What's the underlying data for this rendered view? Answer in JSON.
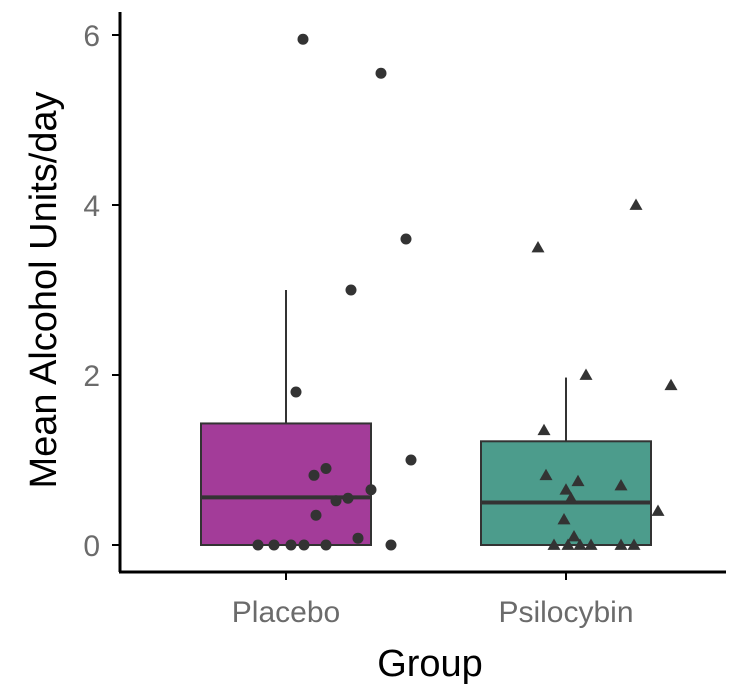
{
  "chart_data": {
    "type": "box",
    "xlabel": "Group",
    "ylabel": "Mean Alcohol Units/day",
    "ylim": [
      0,
      6
    ],
    "yticks": [
      "0",
      "2",
      "4",
      "6"
    ],
    "grid": false,
    "categories": [
      "Placebo",
      "Psilocybin"
    ],
    "groups": [
      {
        "name": "Placebo",
        "color": "#a33c99",
        "marker": "circle",
        "box": {
          "min": 0.0,
          "q1": 0.0,
          "median": 0.56,
          "q3": 1.43,
          "whisker_high": 3.0
        },
        "points": [
          {
            "x": 0.17,
            "y": 5.95
          },
          {
            "x": 0.95,
            "y": 5.55
          },
          {
            "x": 1.2,
            "y": 3.6
          },
          {
            "x": 0.65,
            "y": 3.0
          },
          {
            "x": 0.1,
            "y": 1.8
          },
          {
            "x": 1.25,
            "y": 1.0
          },
          {
            "x": 0.4,
            "y": 0.9
          },
          {
            "x": 0.28,
            "y": 0.82
          },
          {
            "x": 0.85,
            "y": 0.65
          },
          {
            "x": 0.62,
            "y": 0.55
          },
          {
            "x": 0.5,
            "y": 0.52
          },
          {
            "x": 0.3,
            "y": 0.35
          },
          {
            "x": -0.28,
            "y": 0.0
          },
          {
            "x": -0.12,
            "y": 0.0
          },
          {
            "x": 0.05,
            "y": 0.0
          },
          {
            "x": 0.18,
            "y": 0.0
          },
          {
            "x": 0.4,
            "y": 0.0
          },
          {
            "x": 0.72,
            "y": 0.08
          },
          {
            "x": 1.05,
            "y": 0.0
          }
        ]
      },
      {
        "name": "Psilocybin",
        "color": "#4c9c8c",
        "marker": "triangle",
        "box": {
          "min": 0.0,
          "q1": 0.0,
          "median": 0.5,
          "q3": 1.22,
          "whisker_high": 1.97
        },
        "points": [
          {
            "x": 0.7,
            "y": 4.0
          },
          {
            "x": -0.28,
            "y": 3.5
          },
          {
            "x": 0.2,
            "y": 2.0
          },
          {
            "x": 1.05,
            "y": 1.88
          },
          {
            "x": -0.22,
            "y": 1.35
          },
          {
            "x": -0.2,
            "y": 0.82
          },
          {
            "x": 0.12,
            "y": 0.75
          },
          {
            "x": 0.0,
            "y": 0.65
          },
          {
            "x": 0.55,
            "y": 0.7
          },
          {
            "x": 0.05,
            "y": 0.55
          },
          {
            "x": 0.92,
            "y": 0.4
          },
          {
            "x": -0.02,
            "y": 0.3
          },
          {
            "x": 0.08,
            "y": 0.1
          },
          {
            "x": -0.12,
            "y": 0.0
          },
          {
            "x": 0.02,
            "y": 0.0
          },
          {
            "x": 0.14,
            "y": 0.0
          },
          {
            "x": 0.25,
            "y": 0.0
          },
          {
            "x": 0.55,
            "y": 0.0
          },
          {
            "x": 0.68,
            "y": 0.0
          }
        ]
      }
    ]
  }
}
